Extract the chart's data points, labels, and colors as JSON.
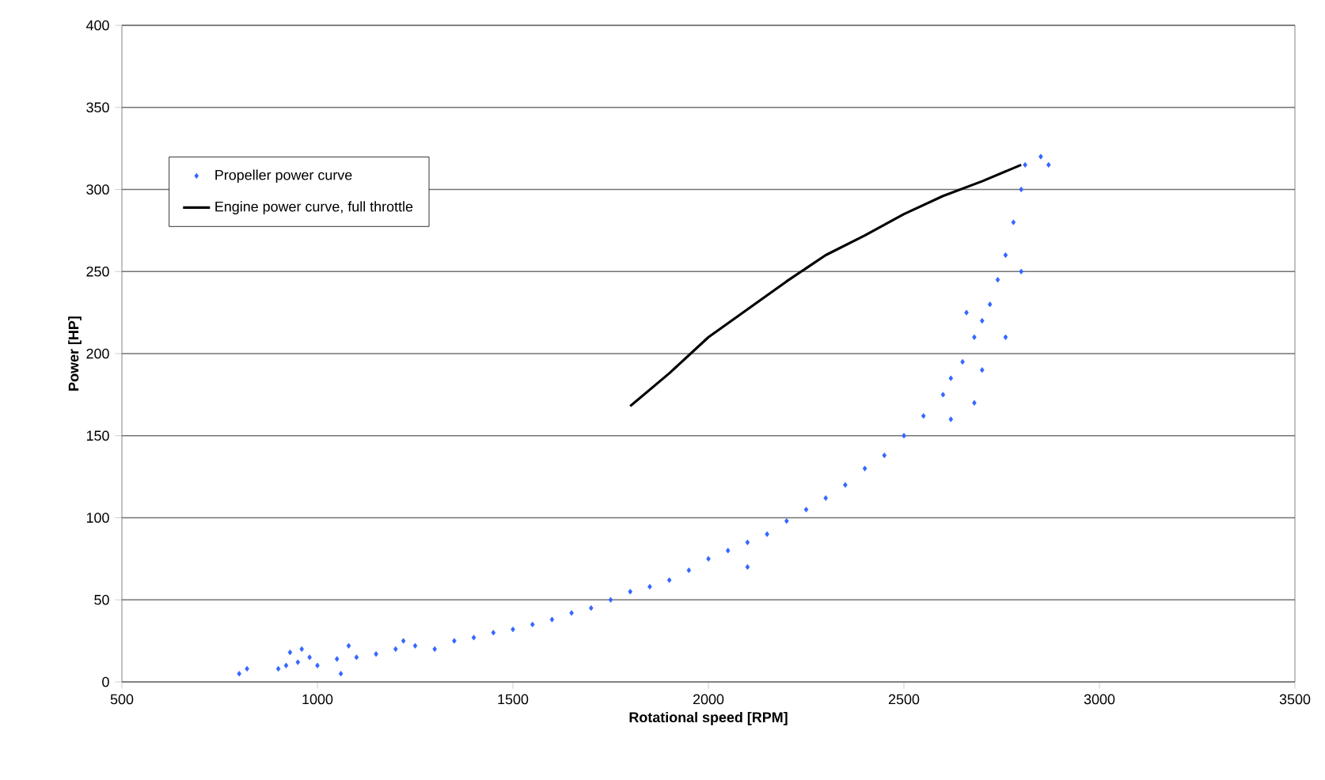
{
  "chart_data": {
    "type": "scatter",
    "xlabel": "Rotational speed   [RPM]",
    "ylabel": "Power   [HP]",
    "xlim": [
      500,
      3500
    ],
    "xticks": [
      500,
      1000,
      1500,
      2000,
      2500,
      3000,
      3500
    ],
    "ylim": [
      0,
      400
    ],
    "yticks": [
      0,
      50,
      100,
      150,
      200,
      250,
      300,
      350,
      400
    ],
    "grid": "y",
    "legend": "top left",
    "series": [
      {
        "name": "Propeller power curve",
        "marker": "diamond",
        "color": "#3366ff",
        "x": [
          800,
          820,
          900,
          920,
          930,
          950,
          960,
          980,
          1000,
          1050,
          1060,
          1080,
          1100,
          1150,
          1200,
          1220,
          1250,
          1300,
          1350,
          1400,
          1450,
          1500,
          1550,
          1600,
          1650,
          1700,
          1750,
          1800,
          1850,
          1900,
          1950,
          2000,
          2050,
          2100,
          2100,
          2150,
          2200,
          2250,
          2300,
          2350,
          2400,
          2450,
          2500,
          2550,
          2600,
          2620,
          2620,
          2650,
          2660,
          2680,
          2680,
          2700,
          2700,
          2720,
          2740,
          2760,
          2760,
          2780,
          2800,
          2800,
          2810,
          2850,
          2870
        ],
        "values": [
          5,
          8,
          8,
          10,
          18,
          12,
          20,
          15,
          10,
          14,
          5,
          22,
          15,
          17,
          20,
          25,
          22,
          20,
          25,
          27,
          30,
          32,
          35,
          38,
          42,
          45,
          50,
          55,
          58,
          62,
          68,
          75,
          80,
          85,
          70,
          90,
          98,
          105,
          112,
          120,
          130,
          138,
          150,
          162,
          175,
          185,
          160,
          195,
          225,
          210,
          170,
          220,
          190,
          230,
          245,
          260,
          210,
          280,
          300,
          250,
          315,
          320,
          315
        ]
      },
      {
        "name": "Engine power curve, full throttle",
        "type": "line",
        "marker": "none",
        "line_style": "solid",
        "color": "#000000",
        "x": [
          1800,
          1900,
          2000,
          2100,
          2200,
          2300,
          2400,
          2500,
          2600,
          2700,
          2800
        ],
        "values": [
          168,
          188,
          210,
          227,
          244,
          260,
          272,
          285,
          296,
          305,
          315
        ]
      }
    ]
  }
}
